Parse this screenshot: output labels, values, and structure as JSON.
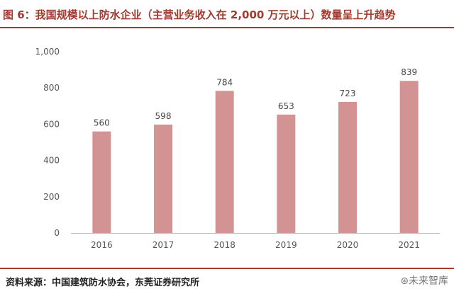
{
  "header": {
    "title": "图 6：我国规模以上防水企业（主营业务收入在 2,000 万元以上）数量呈上升趋势"
  },
  "footer": {
    "source": "资料来源：中国建筑防水协会，东莞证券研究所",
    "watermark": "⊛未来智库"
  },
  "colors": {
    "accent": "#a23a2f",
    "bar": "#d39393"
  },
  "chart_data": {
    "type": "bar",
    "categories": [
      "2016",
      "2017",
      "2018",
      "2019",
      "2020",
      "2021"
    ],
    "values": [
      560,
      598,
      784,
      653,
      723,
      839
    ],
    "data_labels": [
      "560",
      "598",
      "784",
      "653",
      "723",
      "839"
    ],
    "ylim": [
      0,
      1000
    ],
    "y_ticks": [
      0,
      200,
      400,
      600,
      800,
      1000
    ],
    "y_tick_labels": [
      "0",
      "200",
      "400",
      "600",
      "800",
      "1,000"
    ],
    "grid": false,
    "title": "",
    "xlabel": "",
    "ylabel": ""
  }
}
